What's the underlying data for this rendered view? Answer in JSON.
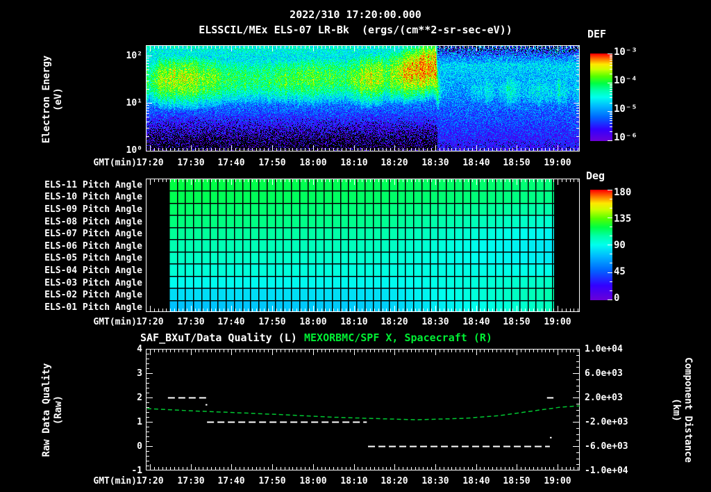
{
  "header": {
    "datetime": "2022/310 17:20:00.000",
    "instrument_title": "ELSSCIL/MEx ELS-07 LR-Bk  (ergs/(cm**2-sr-sec-eV))"
  },
  "time_axis": {
    "label": "GMT(min)",
    "tick_labels": [
      "17:20",
      "17:30",
      "17:40",
      "17:50",
      "18:00",
      "18:10",
      "18:20",
      "18:30",
      "18:40",
      "18:50",
      "19:00"
    ]
  },
  "panel_energy": {
    "ylabel": [
      "Electron Energy",
      "(eV)"
    ],
    "ytick_labels": [
      "10²",
      "10¹",
      "10⁰"
    ],
    "colorbar_title": "DEF",
    "colorbar_ticks": [
      "10⁻³",
      "10⁻⁴",
      "10⁻⁵",
      "10⁻⁶"
    ]
  },
  "panel_pitch": {
    "row_labels": [
      "ELS-11 Pitch Angle",
      "ELS-10 Pitch Angle",
      "ELS-09 Pitch Angle",
      "ELS-08 Pitch Angle",
      "ELS-07 Pitch Angle",
      "ELS-06 Pitch Angle",
      "ELS-05 Pitch Angle",
      "ELS-04 Pitch Angle",
      "ELS-03 Pitch Angle",
      "ELS-02 Pitch Angle",
      "ELS-01 Pitch Angle"
    ],
    "colorbar_title": "Deg",
    "colorbar_ticks": [
      "180",
      "135",
      "90",
      "45",
      "0"
    ]
  },
  "panel_bottom": {
    "title_left": "SAF_BXuT/Data Quality (L)",
    "title_right": "MEXORBMC/SPF X, Spacecraft (R)",
    "ylabel": [
      "Raw Data Quality",
      "(Raw)"
    ],
    "left_ticks": [
      "4",
      "3",
      "2",
      "1",
      "0",
      "-1"
    ],
    "right_ticks": [
      "1.0e+04",
      "6.0e+03",
      "2.0e+03",
      "-2.0e+03",
      "-6.0e+03",
      "-1.0e+04"
    ],
    "right_label": [
      "Component Distance",
      "(km)"
    ]
  },
  "colors": {
    "background": "#000000",
    "text": "#ffffff",
    "title_green": "#00ee33",
    "line_green": "#00c832",
    "colormap_stops": [
      [
        0,
        "#6a00d8"
      ],
      [
        0.13,
        "#3300ff"
      ],
      [
        0.27,
        "#0066ff"
      ],
      [
        0.4,
        "#00bbff"
      ],
      [
        0.5,
        "#00ffee"
      ],
      [
        0.58,
        "#00ffaa"
      ],
      [
        0.66,
        "#00ff44"
      ],
      [
        0.74,
        "#55ff00"
      ],
      [
        0.82,
        "#ccff00"
      ],
      [
        0.88,
        "#ffe800"
      ],
      [
        0.94,
        "#ff7700"
      ],
      [
        1,
        "#ff0000"
      ]
    ]
  },
  "chart_data": [
    {
      "type": "heatmap",
      "name": "electron_energy_spectrogram",
      "title": "ELSSCIL/MEx ELS-07 LR-Bk",
      "units": "ergs/(cm**2-sr-sec-eV)",
      "x_axis": {
        "label": "GMT(min)",
        "start": "17:20",
        "end": "19:00",
        "minutes_span": [
          -1,
          105
        ]
      },
      "y_axis": {
        "label": "Electron Energy (eV)",
        "scale": "log10",
        "decade_ticks": [
          1,
          10,
          100
        ]
      },
      "color_axis": {
        "label": "DEF",
        "scale": "log10",
        "min": 1e-06,
        "max": 0.001
      },
      "features": {
        "band_peak_log10_keyframes": [
          [
            -1,
            -4.15
          ],
          [
            3,
            -3.75
          ],
          [
            8,
            -3.6
          ],
          [
            14,
            -3.85
          ],
          [
            20,
            -4.05
          ],
          [
            28,
            -4.1
          ],
          [
            35,
            -3.95
          ],
          [
            42,
            -3.95
          ],
          [
            48,
            -4.05
          ],
          [
            53,
            -3.6
          ],
          [
            58,
            -3.8
          ],
          [
            62,
            -3.45
          ],
          [
            66,
            -3.3
          ],
          [
            70,
            -3.3
          ],
          [
            71,
            -4.75
          ],
          [
            76,
            -4.95
          ],
          [
            80,
            -4.5
          ],
          [
            84,
            -4.7
          ],
          [
            88,
            -4.45
          ],
          [
            93,
            -4.65
          ],
          [
            98,
            -4.5
          ],
          [
            105,
            -4.6
          ]
        ],
        "band_center_log10ev_keyframes": [
          [
            -1,
            1.5
          ],
          [
            30,
            1.52
          ],
          [
            55,
            1.55
          ],
          [
            66,
            1.7
          ],
          [
            70,
            1.78
          ],
          [
            70.6,
            1.32
          ],
          [
            105,
            1.28
          ]
        ],
        "band_width_decades_before": 0.4,
        "band_width_decades_after": 0.36,
        "transition_minute": 70.5,
        "noise_amplitude_decades": 0.85
      }
    },
    {
      "type": "heatmap",
      "name": "pitch_angle_panels",
      "rows": [
        "ELS-11",
        "ELS-10",
        "ELS-09",
        "ELS-08",
        "ELS-07",
        "ELS-06",
        "ELS-05",
        "ELS-04",
        "ELS-03",
        "ELS-02",
        "ELS-01"
      ],
      "color_axis": {
        "label": "Deg",
        "min": 0,
        "max": 180
      },
      "data_minutes": [
        4.6,
        99.1
      ],
      "grid_minutes": 2,
      "row_angles_deg": {
        "u_keys": [
          0,
          0.55,
          1
        ],
        "left": [
          119,
          117,
          114,
          111,
          107,
          103,
          99,
          95,
          89,
          81,
          74
        ],
        "mid": [
          116,
          114,
          111,
          108,
          104,
          100,
          96,
          93,
          88,
          82,
          77
        ],
        "right": [
          111,
          109,
          104,
          96,
          87,
          83,
          85,
          91,
          99,
          104,
          101
        ]
      }
    },
    {
      "type": "line",
      "name": "quality_and_distance",
      "title_left": "SAF_BXuT/Data Quality (L)",
      "title_right": "MEXORBMC/SPF X, Spacecraft (R)",
      "left_axis": {
        "label": "Raw Data Quality (Raw)",
        "min": -1,
        "max": 4
      },
      "right_axis": {
        "label": "Component Distance (km)",
        "min": -10000,
        "max": 10000
      },
      "series": [
        {
          "name": "SAF_BXuT/Data Quality",
          "axis": "left",
          "style": "white-dashed",
          "segments": [
            {
              "t": [
                4.4,
                13.8
              ],
              "value": 2
            },
            {
              "t": [
                14,
                53.2
              ],
              "value": 1
            },
            {
              "t": [
                53.5,
                98.1
              ],
              "value": 0
            },
            {
              "t": [
                97.4,
                99
              ],
              "value": 2
            }
          ],
          "points": [
            [
              13.8,
              1.7
            ],
            [
              98.3,
              0.35
            ]
          ]
        },
        {
          "name": "MEXORBMC/SPF X Spacecraft",
          "axis": "right",
          "style": "green-dashed",
          "t": [
            -0.7,
            9.2,
            19.9,
            33.6,
            43.3,
            53.5,
            65.4,
            77.3,
            85.9,
            94.4,
            100.7,
            105.4
          ],
          "km": [
            170,
            -170,
            -460,
            -860,
            -1200,
            -1430,
            -1660,
            -1430,
            -970,
            -170,
            400,
            630
          ]
        }
      ]
    }
  ]
}
